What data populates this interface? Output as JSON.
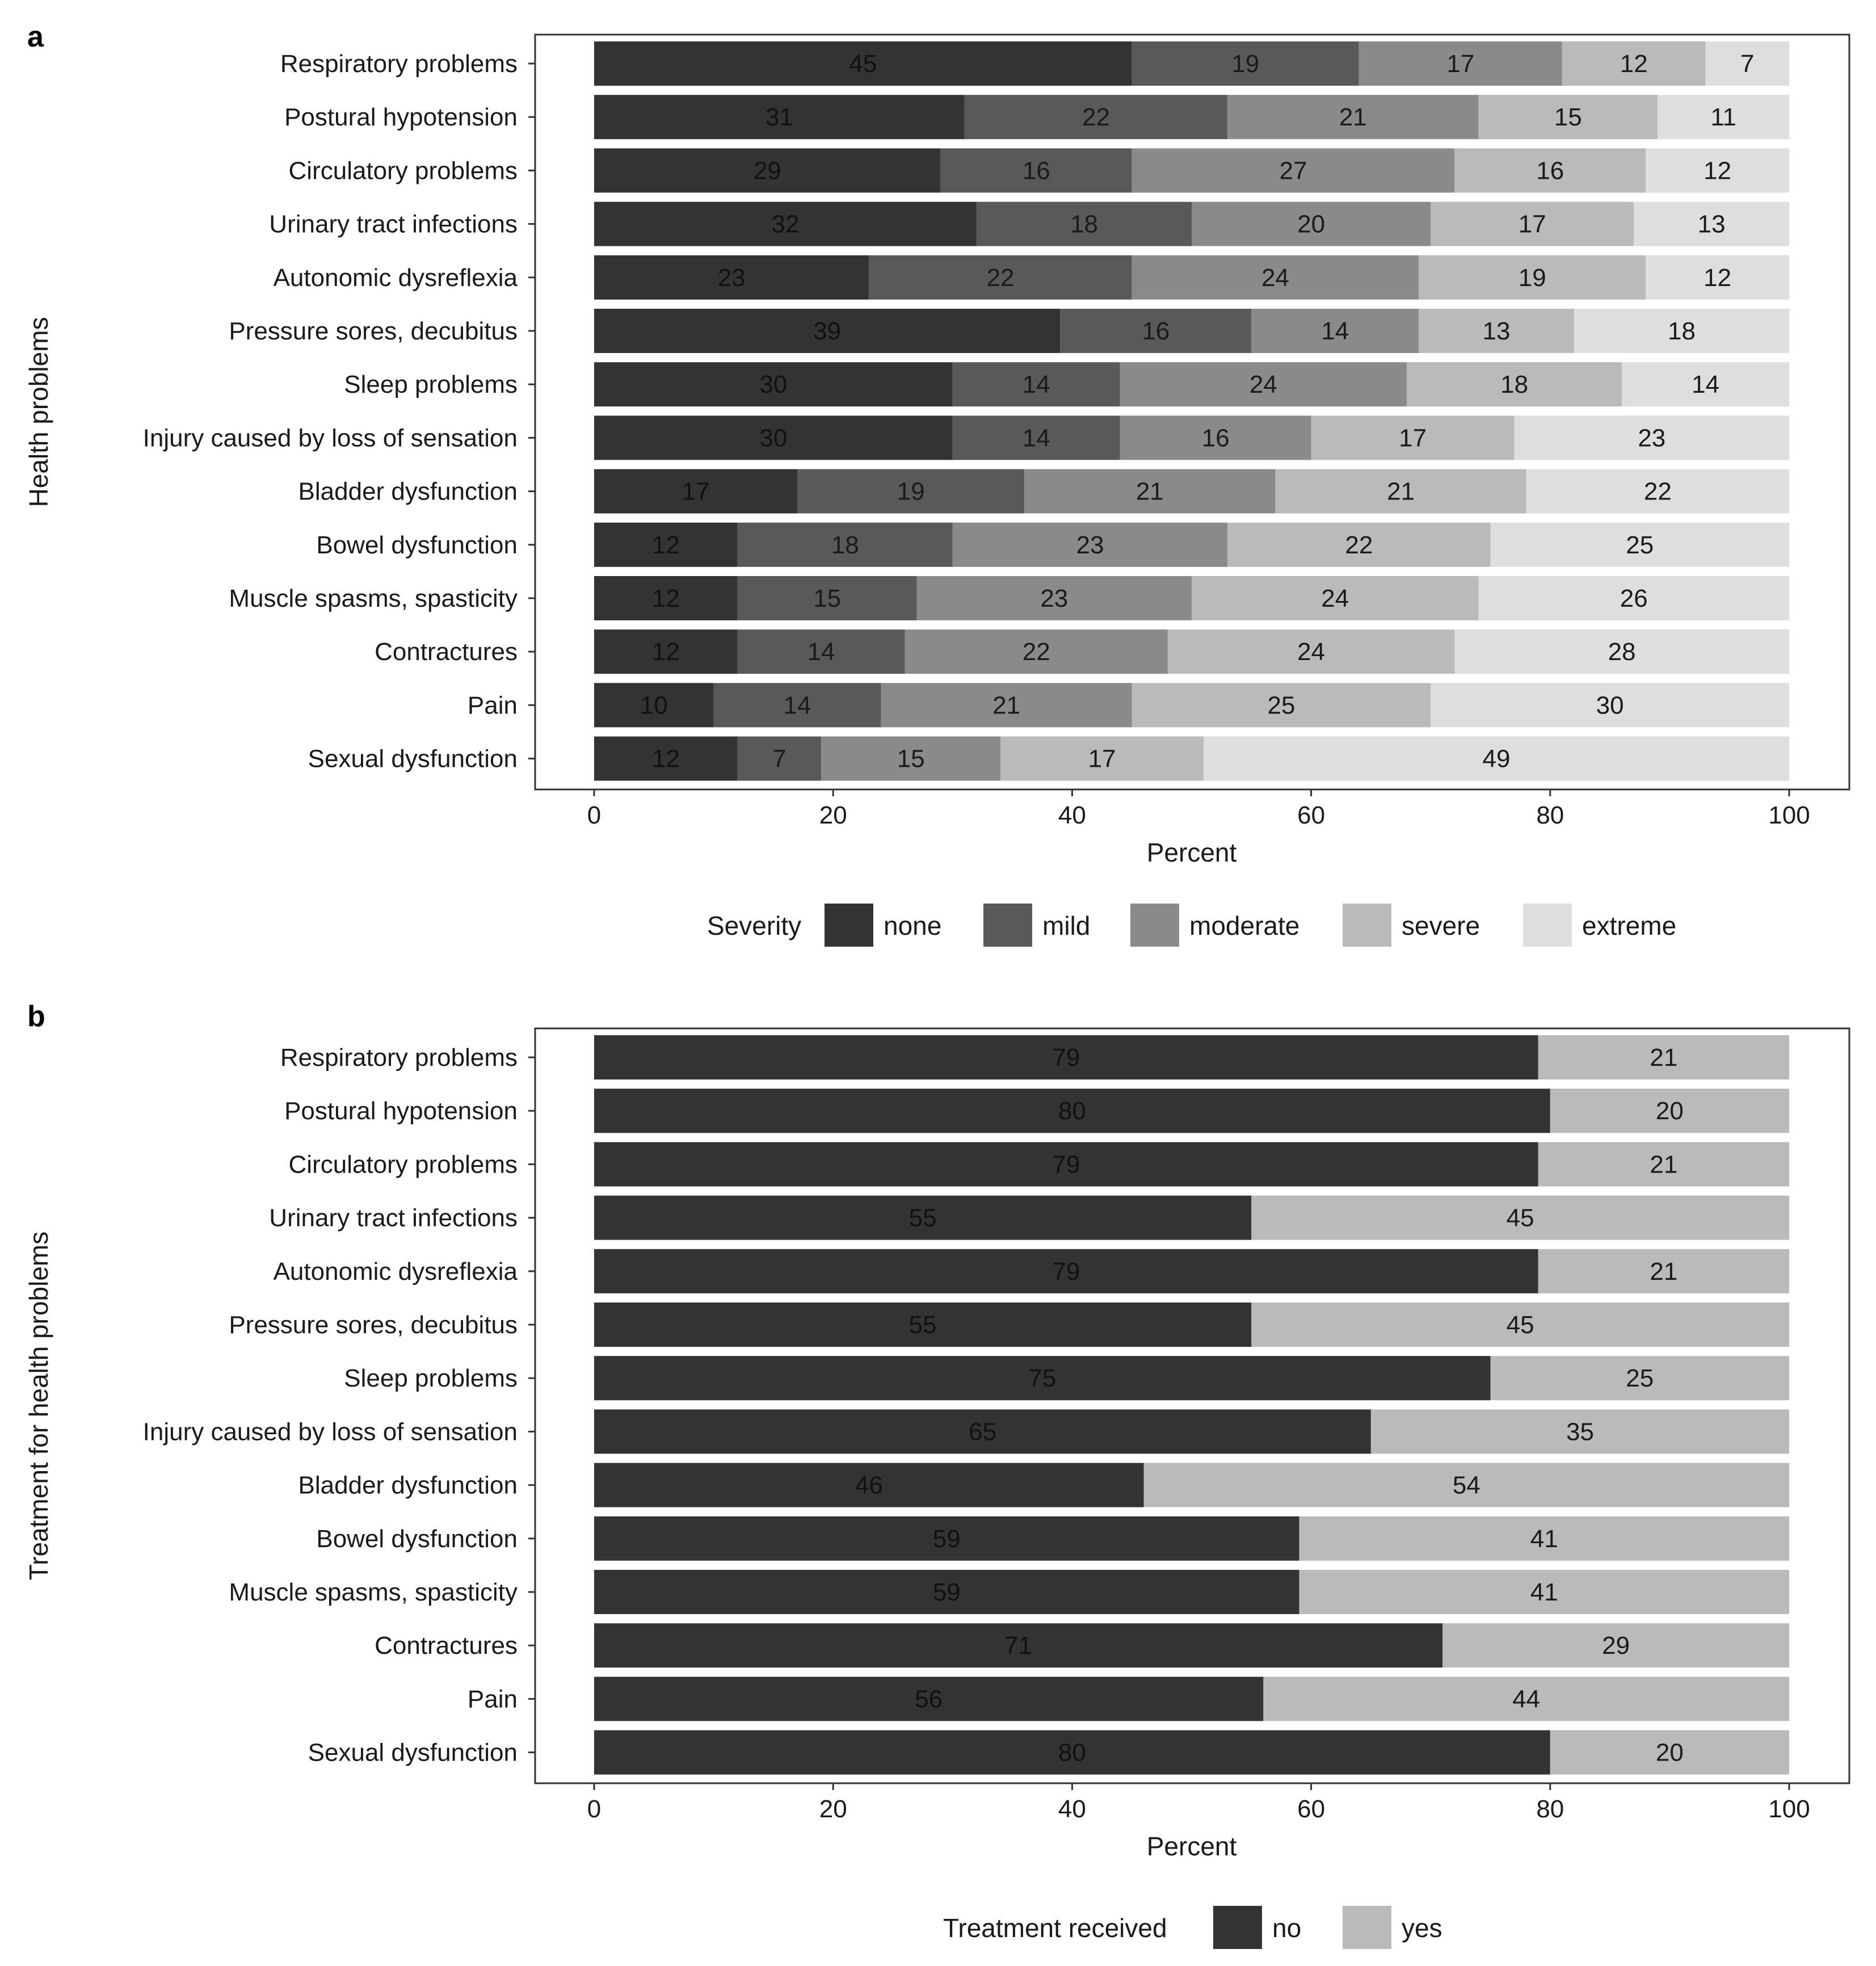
{
  "chart_data": [
    {
      "panel": "a",
      "type": "bar",
      "orientation": "horizontal",
      "stacked": true,
      "ylabel": "Health problems",
      "xlabel": "Percent",
      "xlim": [
        0,
        100
      ],
      "xticks": [
        "0",
        "20",
        "40",
        "60",
        "80",
        "100"
      ],
      "categories": [
        "Respiratory problems",
        "Postural hypotension",
        "Circulatory problems",
        "Urinary tract infections",
        "Autonomic dysreflexia",
        "Pressure sores, decubitus",
        "Sleep problems",
        "Injury caused by loss of sensation",
        "Bladder dysfunction",
        "Bowel dysfunction",
        "Muscle spasms, spasticity",
        "Contractures",
        "Pain",
        "Sexual dysfunction"
      ],
      "legend_title": "Severity",
      "legend_position": "bottom",
      "series": [
        {
          "name": "none",
          "color": "#333333",
          "label_color": "#111111",
          "values": [
            45,
            31,
            29,
            32,
            23,
            39,
            30,
            30,
            17,
            12,
            12,
            12,
            10,
            12
          ]
        },
        {
          "name": "mild",
          "color": "#595959",
          "label_color": "#1a1a1a",
          "values": [
            19,
            22,
            16,
            18,
            22,
            16,
            14,
            14,
            19,
            18,
            15,
            14,
            14,
            7
          ]
        },
        {
          "name": "moderate",
          "color": "#8a8a8a",
          "label_color": "#1a1a1a",
          "values": [
            17,
            21,
            27,
            20,
            24,
            14,
            24,
            16,
            21,
            23,
            23,
            22,
            21,
            15
          ]
        },
        {
          "name": "severe",
          "color": "#bababa",
          "label_color": "#1a1a1a",
          "values": [
            12,
            15,
            16,
            17,
            19,
            13,
            18,
            17,
            21,
            22,
            24,
            24,
            25,
            17
          ]
        },
        {
          "name": "extreme",
          "color": "#dedede",
          "label_color": "#1a1a1a",
          "values": [
            7,
            11,
            12,
            13,
            12,
            18,
            14,
            23,
            22,
            25,
            26,
            28,
            30,
            49
          ]
        }
      ]
    },
    {
      "panel": "b",
      "type": "bar",
      "orientation": "horizontal",
      "stacked": true,
      "ylabel": "Treatment for health problems",
      "xlabel": "Percent",
      "xlim": [
        0,
        100
      ],
      "xticks": [
        "0",
        "20",
        "40",
        "60",
        "80",
        "100"
      ],
      "categories": [
        "Respiratory problems",
        "Postural hypotension",
        "Circulatory problems",
        "Urinary tract infections",
        "Autonomic dysreflexia",
        "Pressure sores, decubitus",
        "Sleep problems",
        "Injury caused by loss of sensation",
        "Bladder dysfunction",
        "Bowel dysfunction",
        "Muscle spasms, spasticity",
        "Contractures",
        "Pain",
        "Sexual dysfunction"
      ],
      "legend_title": "Treatment received",
      "legend_position": "bottom",
      "series": [
        {
          "name": "no",
          "color": "#333333",
          "label_color": "#111111",
          "values": [
            79,
            80,
            79,
            55,
            79,
            55,
            75,
            65,
            46,
            59,
            59,
            71,
            56,
            80
          ]
        },
        {
          "name": "yes",
          "color": "#bababa",
          "label_color": "#1a1a1a",
          "values": [
            21,
            20,
            21,
            45,
            21,
            45,
            25,
            35,
            54,
            41,
            41,
            29,
            44,
            20
          ]
        }
      ]
    }
  ]
}
